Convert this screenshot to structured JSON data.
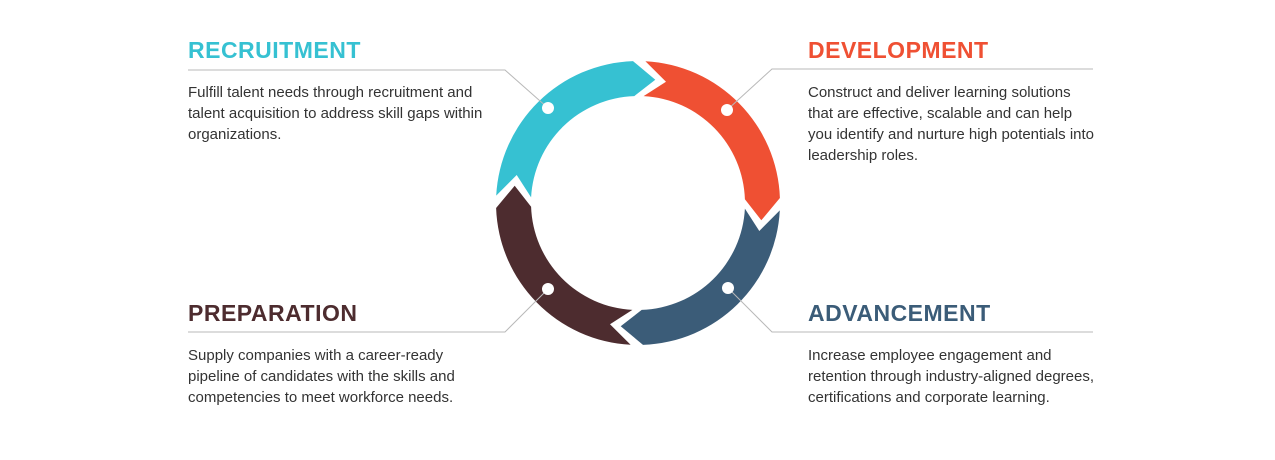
{
  "stages": [
    {
      "id": "recruitment",
      "title": "RECRUITMENT",
      "description": "Fulfill talent needs through recruitment and talent acquisition to address skill gaps within organizations.",
      "color": "#36c1d2"
    },
    {
      "id": "development",
      "title": "DEVELOPMENT",
      "description": "Construct and deliver learning solutions that are effective, scalable and can help you identify and nurture high potentials into leadership roles.",
      "color": "#ef5033"
    },
    {
      "id": "advancement",
      "title": "ADVANCEMENT",
      "description": "Increase employee engagement and retention through industry-aligned degrees, certifications and corporate learning.",
      "color": "#3b5c78"
    },
    {
      "id": "preparation",
      "title": "PREPARATION",
      "description": "Supply companies with a career-ready pipeline of candidates with the skills and competencies to meet workforce needs.",
      "color": "#4d2c2f"
    }
  ],
  "connector_color": "#b9b9b9"
}
